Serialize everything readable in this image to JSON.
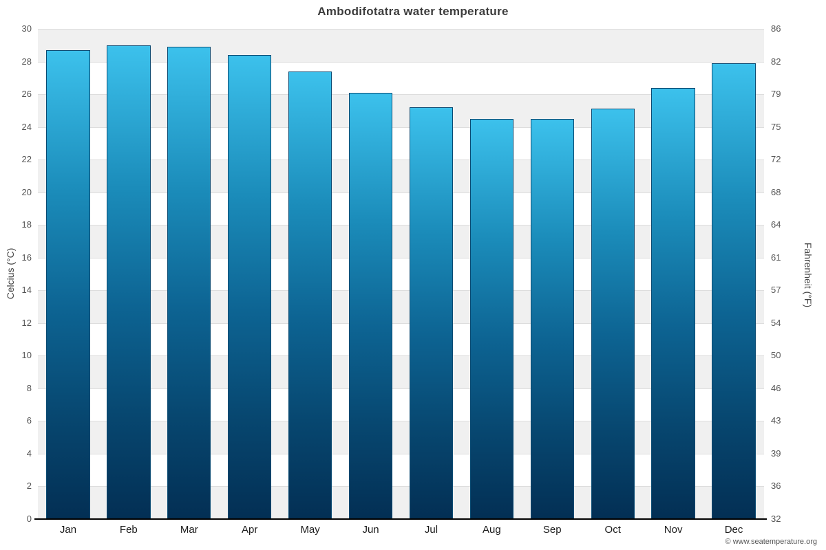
{
  "chart_data": {
    "type": "bar",
    "title": "Ambodifotatra water temperature",
    "xlabel": "",
    "ylabel_left": "Celcius (°C)",
    "ylabel_right": "Fahrenheit (°F)",
    "categories": [
      "Jan",
      "Feb",
      "Mar",
      "Apr",
      "May",
      "Jun",
      "Jul",
      "Aug",
      "Sep",
      "Oct",
      "Nov",
      "Dec"
    ],
    "values": [
      28.7,
      29.0,
      28.9,
      28.4,
      27.4,
      26.1,
      25.2,
      24.5,
      24.5,
      25.1,
      26.4,
      27.9
    ],
    "unit": "°C",
    "ylim": [
      0,
      30
    ],
    "y_tick_step": 2,
    "y_ticks_left": [
      "0",
      "2",
      "4",
      "6",
      "8",
      "10",
      "12",
      "14",
      "16",
      "18",
      "20",
      "22",
      "24",
      "26",
      "28",
      "30"
    ],
    "y_ticks_right": [
      "32",
      "36",
      "39",
      "43",
      "46",
      "50",
      "54",
      "57",
      "61",
      "64",
      "68",
      "72",
      "75",
      "79",
      "82",
      "86"
    ],
    "grid": "horizontal alternating bands every 2°C",
    "legend": "none",
    "colors": {
      "bar_gradient_top": "#3cc1ec",
      "bar_gradient_bottom": "#032f54",
      "bar_border": "#0a4a72",
      "band_gray": "#f0f0f0",
      "band_white": "#ffffff",
      "gridline": "#dddddd",
      "axis_line": "#000000",
      "title_text": "#3c3c3c",
      "tick_text": "#555555"
    }
  },
  "footer": {
    "copyright": "© www.seatemperature.org"
  }
}
